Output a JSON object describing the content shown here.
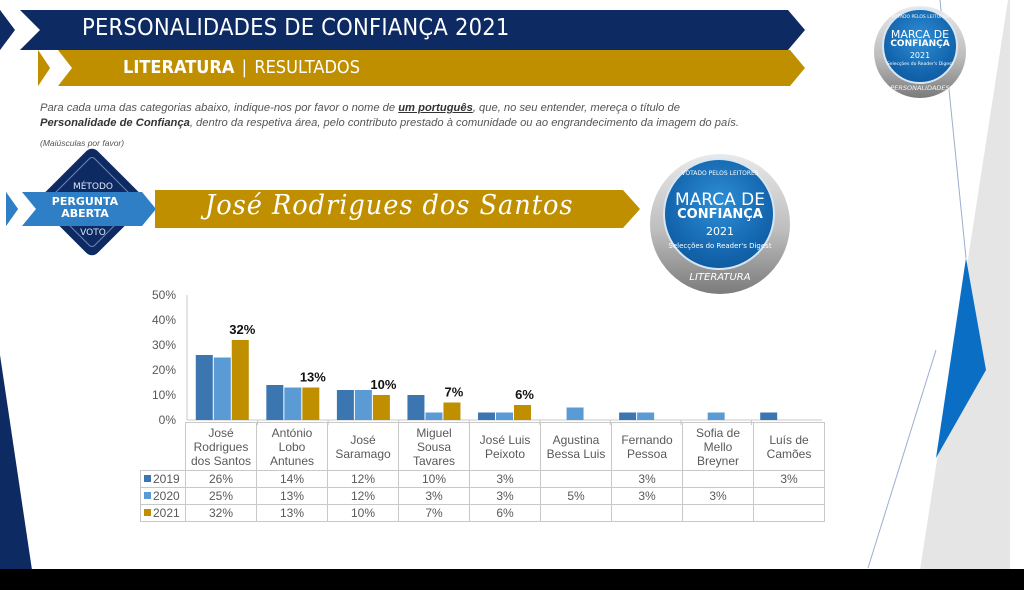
{
  "header": {
    "title": "PERSONALIDADES DE CONFIANÇA 2021",
    "category": "LITERATURA",
    "separator": "|",
    "section": "RESULTADOS"
  },
  "instructions": {
    "part1": "Para cada uma das categorias abaixo, indique-nos por favor o nome de ",
    "emphasis": "um português",
    "part2": ", que, no seu entender, mereça o título de ",
    "bold_title": "Personalidade de Confiança",
    "part3": ", dentro da respetiva área, pelo contributo prestado à comunidade ou ao engrandecimento da imagem do país.",
    "note": "(Maiúsculas por favor)"
  },
  "method": {
    "top": "MÉTODO",
    "ribbon": "PERGUNTA ABERTA",
    "bottom": "VOTO"
  },
  "winner": {
    "name": "José Rodrigues dos Santos"
  },
  "badge_large": {
    "arc_top": "VOTADO PELOS LEITORES",
    "line1": "MARCA DE",
    "line2": "CONFIANÇA",
    "year": "2021",
    "arc_bottom": "Selecções do Reader's Digest",
    "ribbon": "LITERATURA"
  },
  "badge_small": {
    "arc_top": "VOTADO PELOS LEITORES",
    "line1": "MARCA DE",
    "line2": "CONFIANÇA",
    "year": "2021",
    "arc_bottom": "Selecções do Reader's Digest",
    "ribbon": "PERSONALIDADES"
  },
  "colors": {
    "navy": "#0d2a63",
    "gold": "#bf8f00",
    "series_2019": "#3b76b0",
    "series_2020": "#5b9bd5",
    "series_2021": "#bf8f00"
  },
  "chart_data": {
    "type": "bar",
    "title": "",
    "xlabel": "",
    "ylabel": "",
    "ylim": [
      0,
      50
    ],
    "y_ticks": [
      "0%",
      "10%",
      "20%",
      "30%",
      "40%",
      "50%"
    ],
    "grid": false,
    "legend": "data-table",
    "categories": [
      "José Rodrigues dos Santos",
      "António Lobo Antunes",
      "José Saramago",
      "Miguel Sousa Tavares",
      "José Luis Peixoto",
      "Agustina Bessa Luis",
      "Fernando Pessoa",
      "Sofia de Mello Breyner",
      "Luís de Camões"
    ],
    "category_lines": [
      [
        "José",
        "Rodrigues",
        "dos Santos"
      ],
      [
        "António",
        "Lobo",
        "Antunes"
      ],
      [
        "José",
        "Saramago"
      ],
      [
        "Miguel",
        "Sousa",
        "Tavares"
      ],
      [
        "José Luis",
        "Peixoto"
      ],
      [
        "Agustina",
        "Bessa Luis"
      ],
      [
        "Fernando",
        "Pessoa"
      ],
      [
        "Sofia de",
        "Mello",
        "Breyner"
      ],
      [
        "Luís de",
        "Camões"
      ]
    ],
    "series": [
      {
        "name": "2019",
        "values": [
          26,
          14,
          12,
          10,
          3,
          null,
          3,
          null,
          3
        ],
        "labels": [
          "26%",
          "14%",
          "12%",
          "10%",
          "3%",
          "",
          "3%",
          "",
          "3%"
        ]
      },
      {
        "name": "2020",
        "values": [
          25,
          13,
          12,
          3,
          3,
          5,
          3,
          3,
          null
        ],
        "labels": [
          "25%",
          "13%",
          "12%",
          "3%",
          "3%",
          "5%",
          "3%",
          "3%",
          ""
        ]
      },
      {
        "name": "2021",
        "values": [
          32,
          13,
          10,
          7,
          6,
          null,
          null,
          null,
          null
        ],
        "labels": [
          "32%",
          "13%",
          "10%",
          "7%",
          "6%",
          "",
          "",
          "",
          ""
        ]
      }
    ],
    "annotations": [
      {
        "series": "2021",
        "category": "José Rodrigues dos Santos",
        "text": "32%"
      },
      {
        "series": "2021",
        "category": "António Lobo Antunes",
        "text": "13%"
      },
      {
        "series": "2021",
        "category": "José Saramago",
        "text": "10%"
      },
      {
        "series": "2021",
        "category": "Miguel Sousa Tavares",
        "text": "7%"
      },
      {
        "series": "2021",
        "category": "José Luis Peixoto",
        "text": "6%"
      }
    ]
  }
}
